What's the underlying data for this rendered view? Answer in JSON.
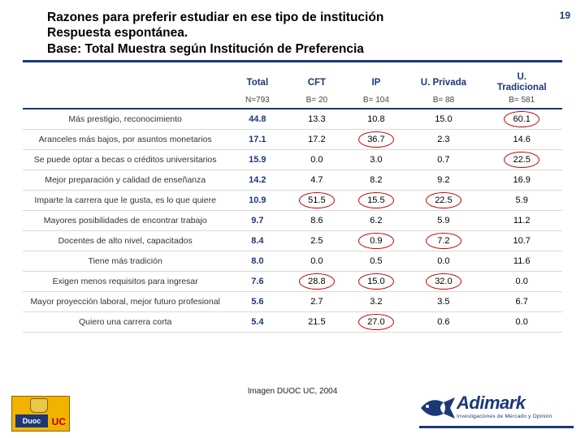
{
  "page_number": "19",
  "title": {
    "line1": "Razones para preferir estudiar en ese tipo de institución",
    "line2": "Respuesta espontánea.",
    "line3": "Base: Total Muestra  según Institución  de Preferencia"
  },
  "table": {
    "col_widths_pct": [
      38,
      11,
      11,
      11,
      14,
      15
    ],
    "header": [
      "",
      "Total",
      "CFT",
      "IP",
      "U. Privada",
      "U. Tradicional"
    ],
    "n_row": [
      "",
      "N=793",
      "B= 20",
      "B= 104",
      "B= 88",
      "B= 581"
    ],
    "rows": [
      {
        "label": "Más prestigio, reconocimiento",
        "vals": [
          "44.8",
          "13.3",
          "10.8",
          "15.0",
          "60.1"
        ],
        "circles": [
          5
        ]
      },
      {
        "label": "Aranceles más bajos, por asuntos monetarios",
        "vals": [
          "17.1",
          "17.2",
          "36.7",
          "2.3",
          "14.6"
        ],
        "circles": [
          3
        ]
      },
      {
        "label": "Se puede optar a becas o créditos universitarios",
        "vals": [
          "15.9",
          "0.0",
          "3.0",
          "0.7",
          "22.5"
        ],
        "circles": [
          5
        ]
      },
      {
        "label": "Mejor preparación y calidad de enseñanza",
        "vals": [
          "14.2",
          "4.7",
          "8.2",
          "9.2",
          "16.9"
        ],
        "circles": []
      },
      {
        "label": "Imparte la carrera que le gusta, es lo que quiere",
        "vals": [
          "10.9",
          "51.5",
          "15.5",
          "22.5",
          "5.9"
        ],
        "circles": [
          2,
          3,
          4
        ]
      },
      {
        "label": "Mayores posibilidades de encontrar trabajo",
        "vals": [
          "9.7",
          "8.6",
          "6.2",
          "5.9",
          "11.2"
        ],
        "circles": []
      },
      {
        "label": "Docentes de alto nivel, capacitados",
        "vals": [
          "8.4",
          "2.5",
          "0.9",
          "7.2",
          "10.7"
        ],
        "circles": [
          3,
          4
        ]
      },
      {
        "label": "Tiene más tradición",
        "vals": [
          "8.0",
          "0.0",
          "0.5",
          "0.0",
          "11.6"
        ],
        "circles": []
      },
      {
        "label": "Exigen menos requisitos para ingresar",
        "vals": [
          "7.6",
          "28.8",
          "15.0",
          "32.0",
          "0.0"
        ],
        "circles": [
          2,
          3,
          4
        ]
      },
      {
        "label": "Mayor proyección laboral, mejor futuro profesional",
        "vals": [
          "5.6",
          "2.7",
          "3.2",
          "3.5",
          "6.7"
        ],
        "circles": []
      },
      {
        "label": "Quiero una carrera corta",
        "vals": [
          "5.4",
          "21.5",
          "27.0",
          "0.6",
          "0.0"
        ],
        "circles": [
          3
        ]
      }
    ],
    "circle_color": "#c00000",
    "header_color": "#1c3877",
    "total_col_color": "#1c3877",
    "row_border_color": "#d9d9d9",
    "header_rule_color": "#1c3877",
    "font_family": "Verdana",
    "header_fontsize_pt": 11.5,
    "n_fontsize_pt": 10,
    "cell_fontsize_pt": 11,
    "label_fontsize_pt": 10.5
  },
  "footer": {
    "caption": "Imagen DUOC UC, 2004",
    "duoc": {
      "text1": "Duoc",
      "text2": "UC"
    },
    "adimark": {
      "brand": "Adimark",
      "sub": "Investigaciones de Mercado y Opinión"
    }
  },
  "colors": {
    "background": "#ffffff",
    "title_text": "#000000",
    "title_rule": "#1c3877",
    "page_num": "#1c3877",
    "duoc_bg": "#f2b200",
    "duoc_blue": "#1c3877",
    "duoc_red": "#b00000",
    "adimark_blue": "#1c3877"
  }
}
